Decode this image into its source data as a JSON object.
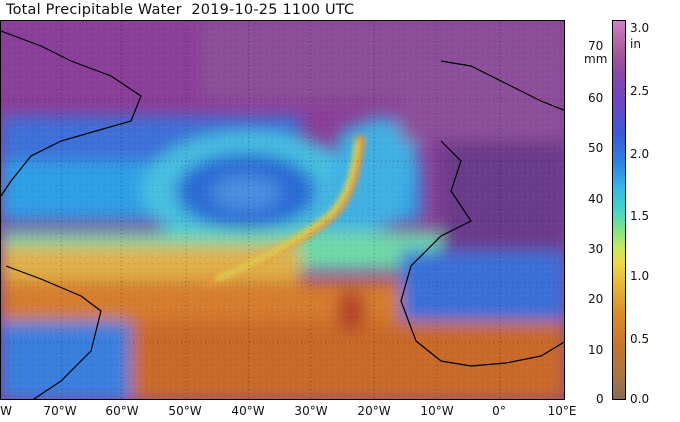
{
  "title": "Total Precipitable Water  2019-10-25 1100 UTC",
  "map": {
    "region": "North Atlantic",
    "x_labels": [
      "W",
      "70°W",
      "60°W",
      "50°W",
      "40°W",
      "30°W",
      "20°W",
      "10°W",
      "0°",
      "10°E"
    ],
    "colors": {
      "land": "#8c5e86",
      "moist": "#d9772a",
      "dry": "#7a3a90",
      "mid": "#2f8fe0"
    }
  },
  "colorbar": {
    "left_unit": "mm",
    "right_unit": "in",
    "mm_labels": [
      "70",
      "60",
      "50",
      "40",
      "30",
      "20",
      "10",
      "0"
    ],
    "in_labels": [
      "3.0",
      "2.5",
      "2.0",
      "1.5",
      "1.0",
      "0.5",
      "0.0"
    ]
  }
}
